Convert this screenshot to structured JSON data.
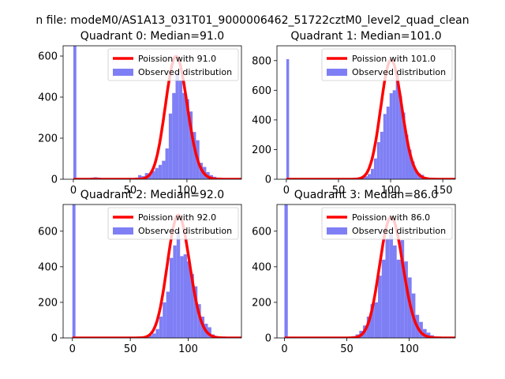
{
  "figure": {
    "suptitle": "n file: modeM0/AS1A13_031T01_9000006462_51722cztM0_level2_quad_clean",
    "background": "#ffffff"
  },
  "colors": {
    "observed": "#7f7ff5",
    "poisson": "#ff0000"
  },
  "chart_data": [
    {
      "type": "bar",
      "title": "Quadrant 0: Median=91.0",
      "xlim": [
        -9,
        148
      ],
      "ylim": [
        0,
        650
      ],
      "xticks": [
        0,
        50,
        100
      ],
      "yticks": [
        0,
        200,
        400,
        600
      ],
      "bin_width": 3,
      "zero_bar": 650,
      "median": 91.0,
      "legend": {
        "placement": "top-right",
        "poisson_label": "Poission with 91.0",
        "observed_label": "Observed distribution"
      },
      "bins": [
        [
          15,
          8
        ],
        [
          18,
          10
        ],
        [
          21,
          8
        ],
        [
          24,
          4
        ],
        [
          27,
          5
        ],
        [
          33,
          3
        ],
        [
          36,
          2
        ],
        [
          48,
          3
        ],
        [
          51,
          5
        ],
        [
          54,
          8
        ],
        [
          57,
          20
        ],
        [
          60,
          15
        ],
        [
          63,
          30
        ],
        [
          66,
          28
        ],
        [
          69,
          40
        ],
        [
          72,
          55
        ],
        [
          75,
          70
        ],
        [
          78,
          90
        ],
        [
          81,
          150
        ],
        [
          84,
          320
        ],
        [
          87,
          420
        ],
        [
          90,
          520
        ],
        [
          93,
          480
        ],
        [
          96,
          420
        ],
        [
          99,
          390
        ],
        [
          102,
          330
        ],
        [
          105,
          230
        ],
        [
          108,
          190
        ],
        [
          111,
          80
        ],
        [
          114,
          60
        ],
        [
          117,
          35
        ],
        [
          120,
          20
        ],
        [
          123,
          12
        ],
        [
          126,
          8
        ],
        [
          129,
          5
        ]
      ]
    },
    {
      "type": "bar",
      "title": "Quadrant 1: Median=101.0",
      "xlim": [
        -9,
        162
      ],
      "ylim": [
        0,
        900
      ],
      "xticks": [
        0,
        50,
        100,
        150
      ],
      "yticks": [
        0,
        200,
        400,
        600,
        800
      ],
      "bin_width": 3,
      "zero_bar": 810,
      "median": 101.0,
      "legend": {
        "placement": "top-right",
        "poisson_label": "Poission with 101.0",
        "observed_label": "Observed distribution"
      },
      "bins": [
        [
          66,
          5
        ],
        [
          69,
          8
        ],
        [
          72,
          10
        ],
        [
          75,
          20
        ],
        [
          78,
          35
        ],
        [
          81,
          70
        ],
        [
          84,
          140
        ],
        [
          87,
          250
        ],
        [
          90,
          320
        ],
        [
          93,
          440
        ],
        [
          96,
          490
        ],
        [
          99,
          580
        ],
        [
          102,
          600
        ],
        [
          105,
          700
        ],
        [
          108,
          560
        ],
        [
          111,
          450
        ],
        [
          114,
          300
        ],
        [
          117,
          200
        ],
        [
          120,
          120
        ],
        [
          123,
          60
        ],
        [
          126,
          40
        ],
        [
          129,
          30
        ],
        [
          132,
          15
        ],
        [
          135,
          10
        ],
        [
          138,
          5
        ]
      ]
    },
    {
      "type": "bar",
      "title": "Quadrant 2: Median=92.0",
      "xlim": [
        -8,
        146
      ],
      "ylim": [
        0,
        750
      ],
      "xticks": [
        0,
        50,
        100
      ],
      "yticks": [
        0,
        200,
        400,
        600
      ],
      "bin_width": 3,
      "zero_bar": 750,
      "median": 92.0,
      "legend": {
        "placement": "top-right",
        "poisson_label": "Poission with 92.0",
        "observed_label": "Observed distribution"
      },
      "bins": [
        [
          63,
          5
        ],
        [
          66,
          15
        ],
        [
          69,
          25
        ],
        [
          72,
          50
        ],
        [
          75,
          120
        ],
        [
          78,
          200
        ],
        [
          81,
          260
        ],
        [
          84,
          450
        ],
        [
          87,
          520
        ],
        [
          90,
          600
        ],
        [
          93,
          460
        ],
        [
          96,
          470
        ],
        [
          99,
          430
        ],
        [
          102,
          360
        ],
        [
          105,
          290
        ],
        [
          108,
          190
        ],
        [
          111,
          120
        ],
        [
          114,
          80
        ],
        [
          117,
          60
        ],
        [
          120,
          20
        ],
        [
          123,
          10
        ],
        [
          126,
          5
        ]
      ]
    },
    {
      "type": "bar",
      "title": "Quadrant 3: Median=86.0",
      "xlim": [
        -6,
        137
      ],
      "ylim": [
        0,
        750
      ],
      "xticks": [
        0,
        50,
        100
      ],
      "yticks": [
        0,
        200,
        400,
        600
      ],
      "bin_width": 3,
      "zero_bar": 750,
      "median": 86.0,
      "legend": {
        "placement": "top-right",
        "poisson_label": "Poission with 86.0",
        "observed_label": "Observed distribution"
      },
      "bins": [
        [
          51,
          5
        ],
        [
          54,
          10
        ],
        [
          57,
          20
        ],
        [
          60,
          40
        ],
        [
          63,
          70
        ],
        [
          66,
          120
        ],
        [
          69,
          190
        ],
        [
          72,
          200
        ],
        [
          75,
          350
        ],
        [
          78,
          440
        ],
        [
          81,
          560
        ],
        [
          84,
          590
        ],
        [
          87,
          520
        ],
        [
          90,
          440
        ],
        [
          93,
          550
        ],
        [
          96,
          430
        ],
        [
          99,
          340
        ],
        [
          102,
          250
        ],
        [
          105,
          130
        ],
        [
          108,
          90
        ],
        [
          111,
          50
        ],
        [
          114,
          30
        ],
        [
          117,
          15
        ],
        [
          120,
          5
        ]
      ]
    }
  ]
}
